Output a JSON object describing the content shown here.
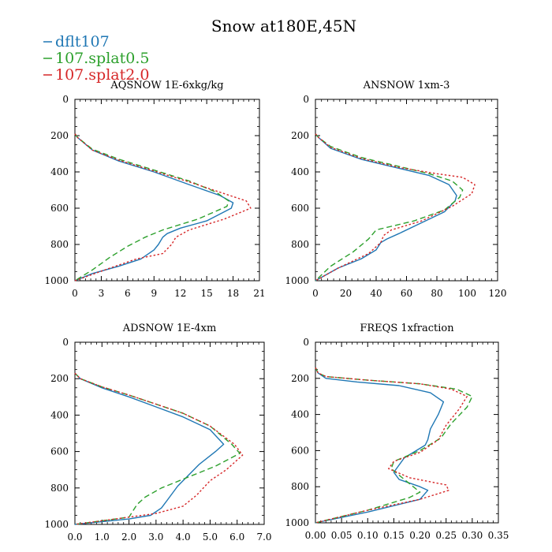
{
  "figure": {
    "title": "Snow at180E,45N",
    "legend": [
      {
        "name": "dflt107",
        "color": "#1f77b4",
        "dash": "solid"
      },
      {
        "name": "107.splat0.5",
        "color": "#2ca02c",
        "dash": "dashed"
      },
      {
        "name": "107.splat2.0",
        "color": "#d62728",
        "dash": "dotted"
      }
    ]
  },
  "chart_data": [
    {
      "type": "line",
      "title": "AQSNOW  1E-6xkg/kg",
      "xlim": [
        0,
        21
      ],
      "ylim": [
        1000,
        0
      ],
      "xticks": [
        "0",
        "3",
        "6",
        "9",
        "12",
        "15",
        "18",
        "21"
      ],
      "yticks": [
        "0",
        "200",
        "400",
        "600",
        "800",
        "1000"
      ],
      "series": [
        {
          "name": "dflt107",
          "x": [
            0,
            0.3,
            2,
            5,
            9,
            13,
            16.5,
            18,
            17.8,
            15,
            12,
            10.5,
            10,
            9.5,
            9,
            7.5,
            5,
            2,
            0
          ],
          "y": [
            190,
            210,
            280,
            340,
            400,
            470,
            530,
            570,
            600,
            670,
            710,
            740,
            760,
            800,
            830,
            880,
            920,
            960,
            1000
          ]
        },
        {
          "name": "107.splat0.5",
          "x": [
            0,
            0.3,
            2,
            5,
            9,
            13,
            16,
            17.5,
            17.3,
            14,
            10,
            8,
            6,
            4,
            2,
            0
          ],
          "y": [
            190,
            210,
            275,
            330,
            390,
            450,
            510,
            560,
            590,
            660,
            720,
            760,
            810,
            870,
            940,
            1000
          ]
        },
        {
          "name": "107.splat2.0",
          "x": [
            0,
            0.3,
            2,
            5,
            9,
            13,
            17,
            19.5,
            20,
            17,
            13,
            11.5,
            11,
            10,
            7,
            4,
            0
          ],
          "y": [
            190,
            210,
            280,
            335,
            395,
            455,
            520,
            560,
            600,
            660,
            720,
            760,
            800,
            850,
            880,
            930,
            1000
          ]
        }
      ]
    },
    {
      "type": "line",
      "title": "ANSNOW  1xm-3",
      "xlim": [
        0,
        120
      ],
      "ylim": [
        1000,
        0
      ],
      "xticks": [
        "0",
        "20",
        "40",
        "60",
        "80",
        "100",
        "120"
      ],
      "yticks": [
        "0",
        "200",
        "400",
        "600",
        "800",
        "1000"
      ],
      "series": [
        {
          "name": "dflt107",
          "x": [
            0,
            2,
            10,
            30,
            55,
            75,
            88,
            93,
            92,
            85,
            70,
            55,
            47,
            43,
            40,
            30,
            15,
            0
          ],
          "y": [
            190,
            210,
            270,
            330,
            380,
            420,
            470,
            530,
            560,
            620,
            680,
            740,
            770,
            790,
            830,
            880,
            930,
            1000
          ]
        },
        {
          "name": "107.splat0.5",
          "x": [
            0,
            2,
            10,
            30,
            55,
            75,
            90,
            97,
            95,
            85,
            65,
            50,
            40,
            35,
            25,
            10,
            0
          ],
          "y": [
            190,
            210,
            260,
            320,
            370,
            410,
            450,
            500,
            540,
            610,
            670,
            700,
            720,
            770,
            840,
            920,
            1000
          ]
        },
        {
          "name": "107.splat2.0",
          "x": [
            0,
            2,
            10,
            30,
            55,
            80,
            97,
            105,
            103,
            90,
            70,
            50,
            45,
            43,
            35,
            15,
            0
          ],
          "y": [
            190,
            210,
            265,
            325,
            375,
            410,
            430,
            470,
            520,
            590,
            670,
            720,
            750,
            790,
            850,
            930,
            1000
          ]
        }
      ]
    },
    {
      "type": "line",
      "title": "ADSNOW  1E-4xm",
      "xlim": [
        0,
        7
      ],
      "ylim": [
        1000,
        0
      ],
      "xticks": [
        "0.0",
        "1.0",
        "2.0",
        "3.0",
        "4.0",
        "5.0",
        "6.0",
        "7.0"
      ],
      "yticks": [
        "0",
        "200",
        "400",
        "600",
        "800",
        "1000"
      ],
      "series": [
        {
          "name": "dflt107",
          "x": [
            0,
            0.2,
            1,
            2,
            3,
            4,
            5,
            5.5,
            5.2,
            4.6,
            4.2,
            3.8,
            3.4,
            3.2,
            2.8,
            2,
            0
          ],
          "y": [
            170,
            200,
            250,
            300,
            355,
            410,
            480,
            560,
            600,
            670,
            730,
            790,
            870,
            910,
            950,
            970,
            1000
          ]
        },
        {
          "name": "107.splat0.5",
          "x": [
            0,
            0.2,
            1,
            2,
            3,
            4,
            5,
            5.8,
            6.1,
            5.2,
            4.2,
            3.2,
            2.6,
            2.3,
            2,
            0
          ],
          "y": [
            170,
            200,
            245,
            290,
            340,
            390,
            460,
            560,
            610,
            680,
            740,
            800,
            850,
            890,
            960,
            1000
          ]
        },
        {
          "name": "107.splat2.0",
          "x": [
            0,
            0.2,
            1,
            2,
            3,
            4,
            5,
            5.9,
            6.2,
            5.6,
            5,
            4.5,
            4,
            3,
            2,
            0
          ],
          "y": [
            170,
            200,
            245,
            290,
            340,
            390,
            460,
            560,
            620,
            700,
            760,
            840,
            900,
            940,
            960,
            1000
          ]
        }
      ]
    },
    {
      "type": "line",
      "title": "FREQS  1xfraction",
      "xlim": [
        0,
        0.35
      ],
      "ylim": [
        1000,
        0
      ],
      "xticks": [
        "0.00",
        "0.05",
        "0.10",
        "0.15",
        "0.20",
        "0.25",
        "0.30",
        "0.35"
      ],
      "yticks": [
        "0",
        "200",
        "400",
        "600",
        "800",
        "1000"
      ],
      "series": [
        {
          "name": "dflt107",
          "x": [
            0,
            0.005,
            0.02,
            0.08,
            0.16,
            0.22,
            0.245,
            0.235,
            0.22,
            0.215,
            0.21,
            0.17,
            0.15,
            0.16,
            0.2,
            0.215,
            0.2,
            0.1,
            0
          ],
          "y": [
            140,
            170,
            200,
            220,
            240,
            280,
            330,
            400,
            480,
            540,
            570,
            640,
            720,
            760,
            800,
            820,
            870,
            940,
            1000
          ]
        },
        {
          "name": "107.splat0.5",
          "x": [
            0,
            0.005,
            0.02,
            0.1,
            0.2,
            0.27,
            0.3,
            0.29,
            0.26,
            0.24,
            0.2,
            0.15,
            0.145,
            0.17,
            0.2,
            0.18,
            0.1,
            0
          ],
          "y": [
            140,
            170,
            190,
            210,
            230,
            260,
            300,
            360,
            450,
            530,
            600,
            660,
            700,
            760,
            830,
            860,
            930,
            1000
          ]
        },
        {
          "name": "107.splat2.0",
          "x": [
            0,
            0.005,
            0.02,
            0.1,
            0.2,
            0.26,
            0.29,
            0.275,
            0.25,
            0.235,
            0.2,
            0.15,
            0.14,
            0.18,
            0.25,
            0.255,
            0.2,
            0.1,
            0
          ],
          "y": [
            140,
            170,
            190,
            210,
            230,
            260,
            300,
            370,
            460,
            540,
            610,
            660,
            700,
            750,
            790,
            820,
            870,
            930,
            1000
          ]
        }
      ]
    }
  ]
}
